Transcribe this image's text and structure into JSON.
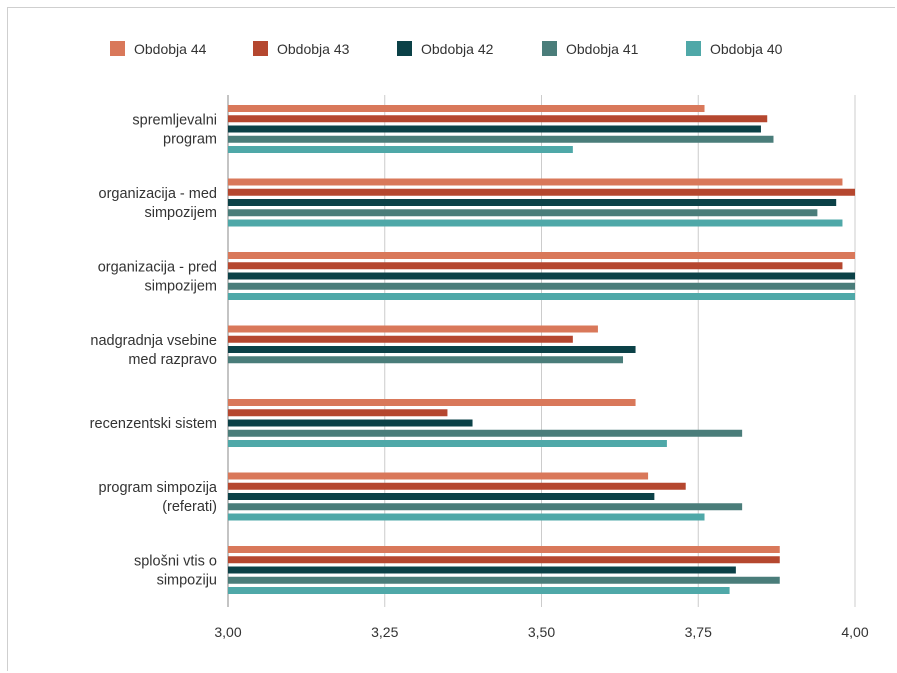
{
  "chart_data": {
    "type": "bar",
    "orientation": "horizontal",
    "categories": [
      [
        "spremljevalni",
        "program"
      ],
      [
        "organizacija - med",
        "simpozijem"
      ],
      [
        "organizacija - pred",
        "simpozijem"
      ],
      [
        "nadgradnja vsebine",
        "med razpravo"
      ],
      [
        "recenzentski sistem"
      ],
      [
        "program simpozija",
        "(referati)"
      ],
      [
        "splošni vtis o",
        "simpoziju"
      ]
    ],
    "series": [
      {
        "name": "Obdobja 44",
        "color": "#D9785A",
        "values": [
          3.76,
          3.98,
          4.0,
          3.59,
          3.65,
          3.67,
          3.88
        ]
      },
      {
        "name": "Obdobja 43",
        "color": "#B5472F",
        "values": [
          3.86,
          4.0,
          3.98,
          3.55,
          3.35,
          3.73,
          3.88
        ]
      },
      {
        "name": "Obdobja 42",
        "color": "#0B4147",
        "values": [
          3.85,
          3.97,
          4.0,
          3.65,
          3.39,
          3.68,
          3.81
        ]
      },
      {
        "name": "Obdobja 41",
        "color": "#4A7D7A",
        "values": [
          3.87,
          3.94,
          4.0,
          3.63,
          3.82,
          3.82,
          3.88
        ]
      },
      {
        "name": "Obdobja 40",
        "color": "#4FA8A8",
        "values": [
          3.55,
          3.98,
          4.0,
          null,
          3.7,
          3.76,
          3.8
        ]
      }
    ],
    "xlim": [
      3.0,
      4.0
    ],
    "xticks": [
      "3,00",
      "3,25",
      "3,50",
      "3,75",
      "4,00"
    ],
    "grid": true,
    "legend_position": "top"
  }
}
